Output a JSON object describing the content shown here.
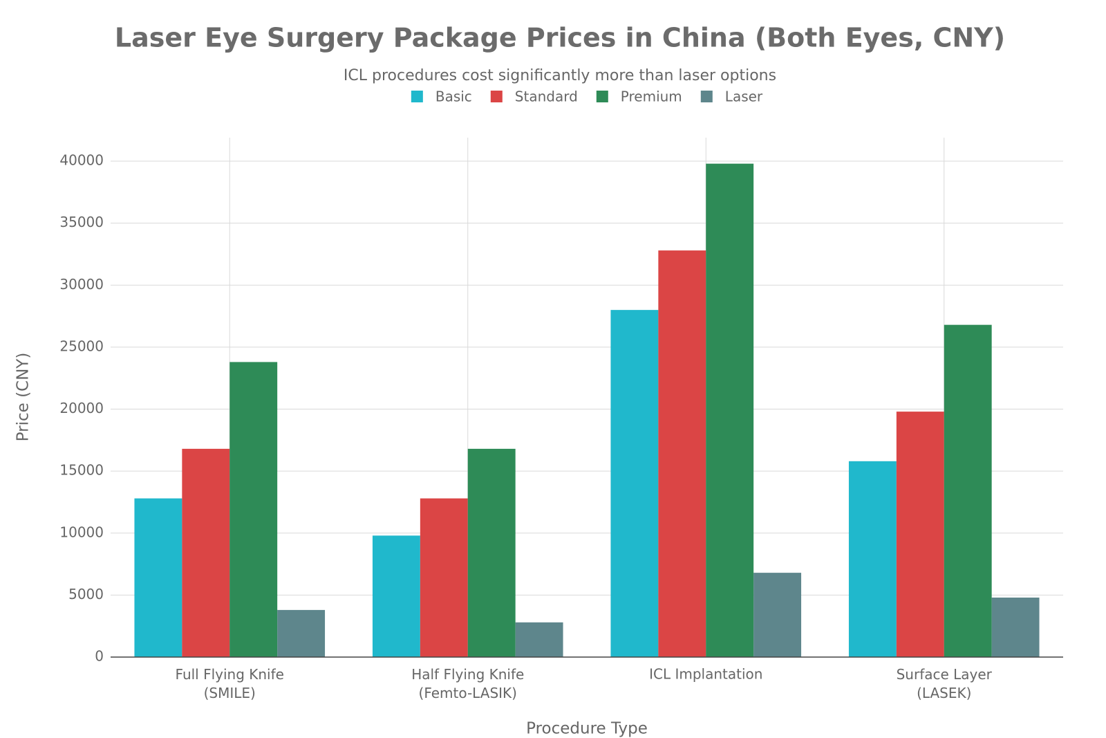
{
  "chart_data": {
    "type": "bar",
    "title": "Laser Eye Surgery Package Prices in China (Both Eyes, CNY)",
    "subtitle": "ICL procedures cost significantly more than laser options",
    "x_label": "Procedure Type",
    "y_label": "Price (CNY)",
    "categories": [
      "Full Flying Knife (SMILE)",
      "Half Flying Knife (Femto-LASIK)",
      "ICL Implantation",
      "Surface Layer (LASEK)"
    ],
    "series": [
      {
        "name": "Basic",
        "color": "#20b8cc",
        "values": [
          12800,
          9800,
          28000,
          15800
        ]
      },
      {
        "name": "Standard",
        "color": "#db4545",
        "values": [
          16800,
          12800,
          32800,
          19800
        ]
      },
      {
        "name": "Premium",
        "color": "#2e8b57",
        "values": [
          23800,
          16800,
          39800,
          26800
        ]
      },
      {
        "name": "Laser",
        "color": "#5e868c",
        "values": [
          3800,
          2800,
          6800,
          4800
        ]
      }
    ],
    "ylim": [
      0,
      41900
    ],
    "yticks": [
      0,
      5000,
      10000,
      15000,
      20000,
      25000,
      30000,
      35000,
      40000
    ],
    "grid": true,
    "legend": "top"
  }
}
